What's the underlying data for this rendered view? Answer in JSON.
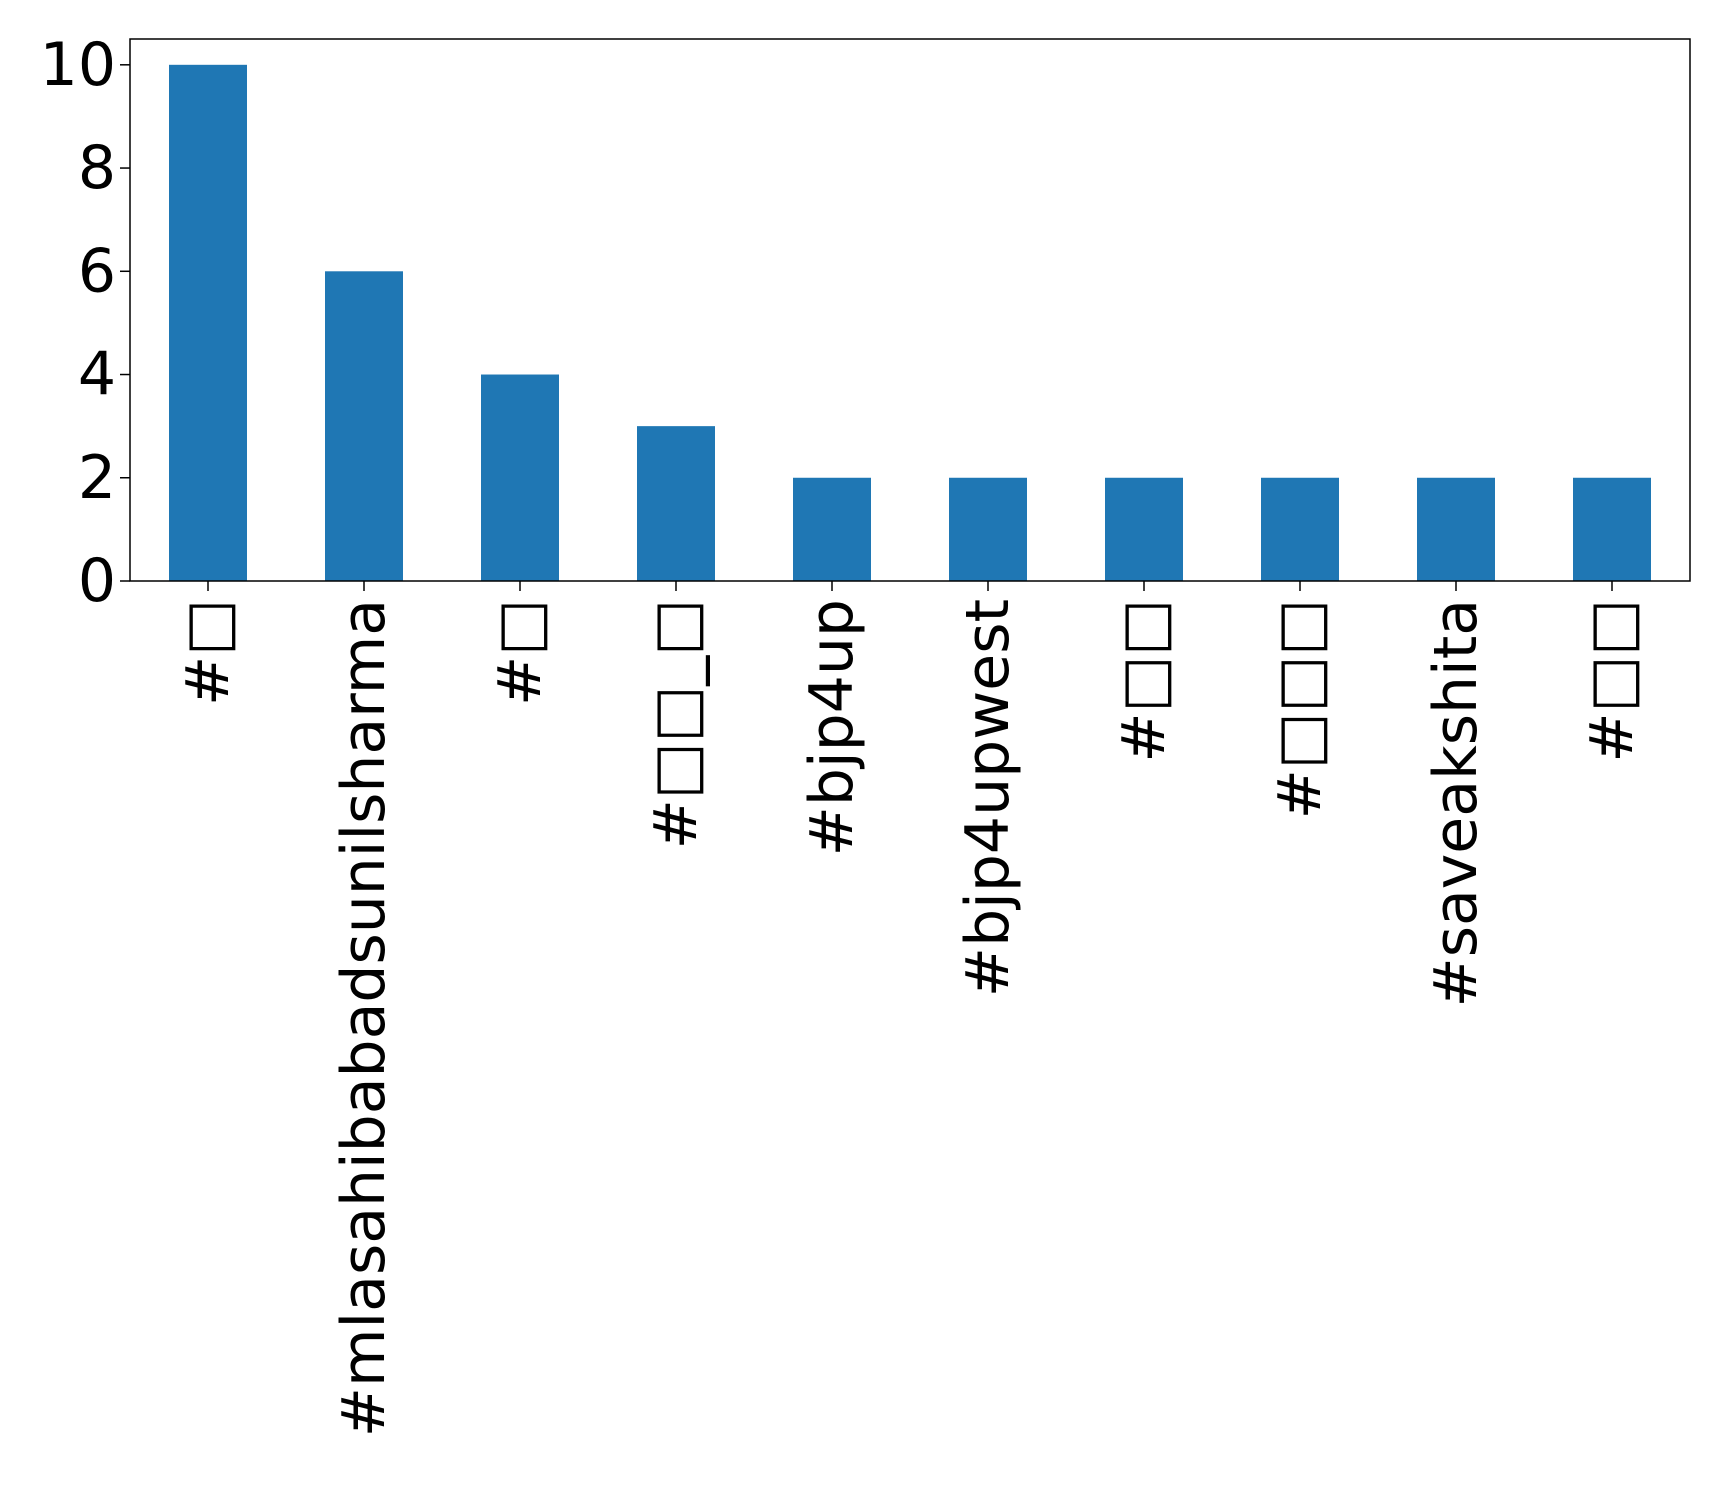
{
  "chart_data": {
    "type": "bar",
    "title": "",
    "xlabel": "",
    "ylabel": "",
    "categories": [
      "#□",
      "#mlasahibabadsunilsharma",
      "#□",
      "#□□_□",
      "#bjp4up",
      "#bjp4upwest",
      "#□□",
      "#□□□",
      "#saveakshita",
      "#□□"
    ],
    "values": [
      10,
      6,
      4,
      3,
      2,
      2,
      2,
      2,
      2,
      2
    ],
    "ylim": [
      0,
      10.5
    ],
    "yticks": [
      0,
      2,
      4,
      6,
      8,
      10
    ],
    "bar_color": "#1f77b4",
    "grid": false,
    "legend": "none",
    "xtick_rotation": "vertical"
  }
}
